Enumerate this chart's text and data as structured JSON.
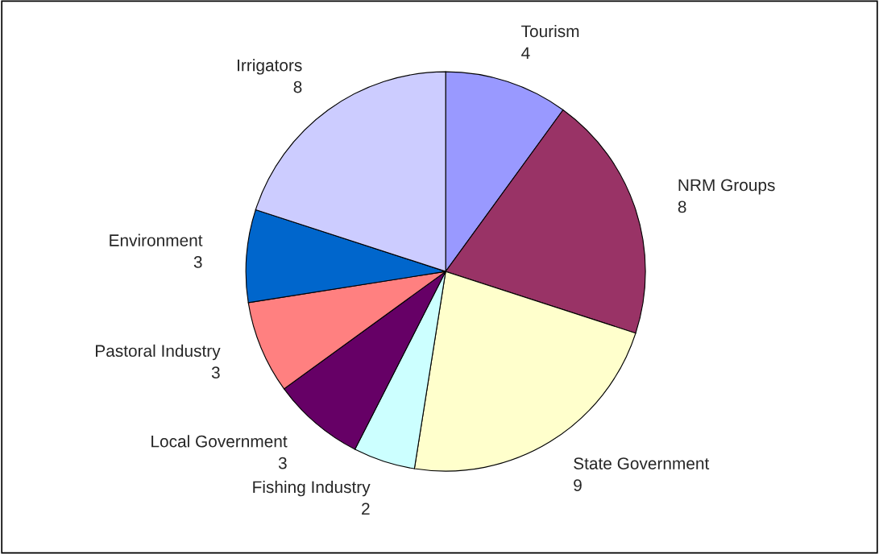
{
  "chart_data": {
    "type": "pie",
    "categories": [
      "Tourism",
      "NRM Groups",
      "State Government",
      "Fishing Industry",
      "Local Government",
      "Pastoral Industry",
      "Environment",
      "Irrigators"
    ],
    "values": [
      4,
      8,
      9,
      2,
      3,
      3,
      3,
      8
    ],
    "colors": [
      "#9999ff",
      "#993366",
      "#ffffcc",
      "#ccffff",
      "#660066",
      "#ff8080",
      "#0066cc",
      "#ccccff"
    ],
    "data_labels": true
  }
}
